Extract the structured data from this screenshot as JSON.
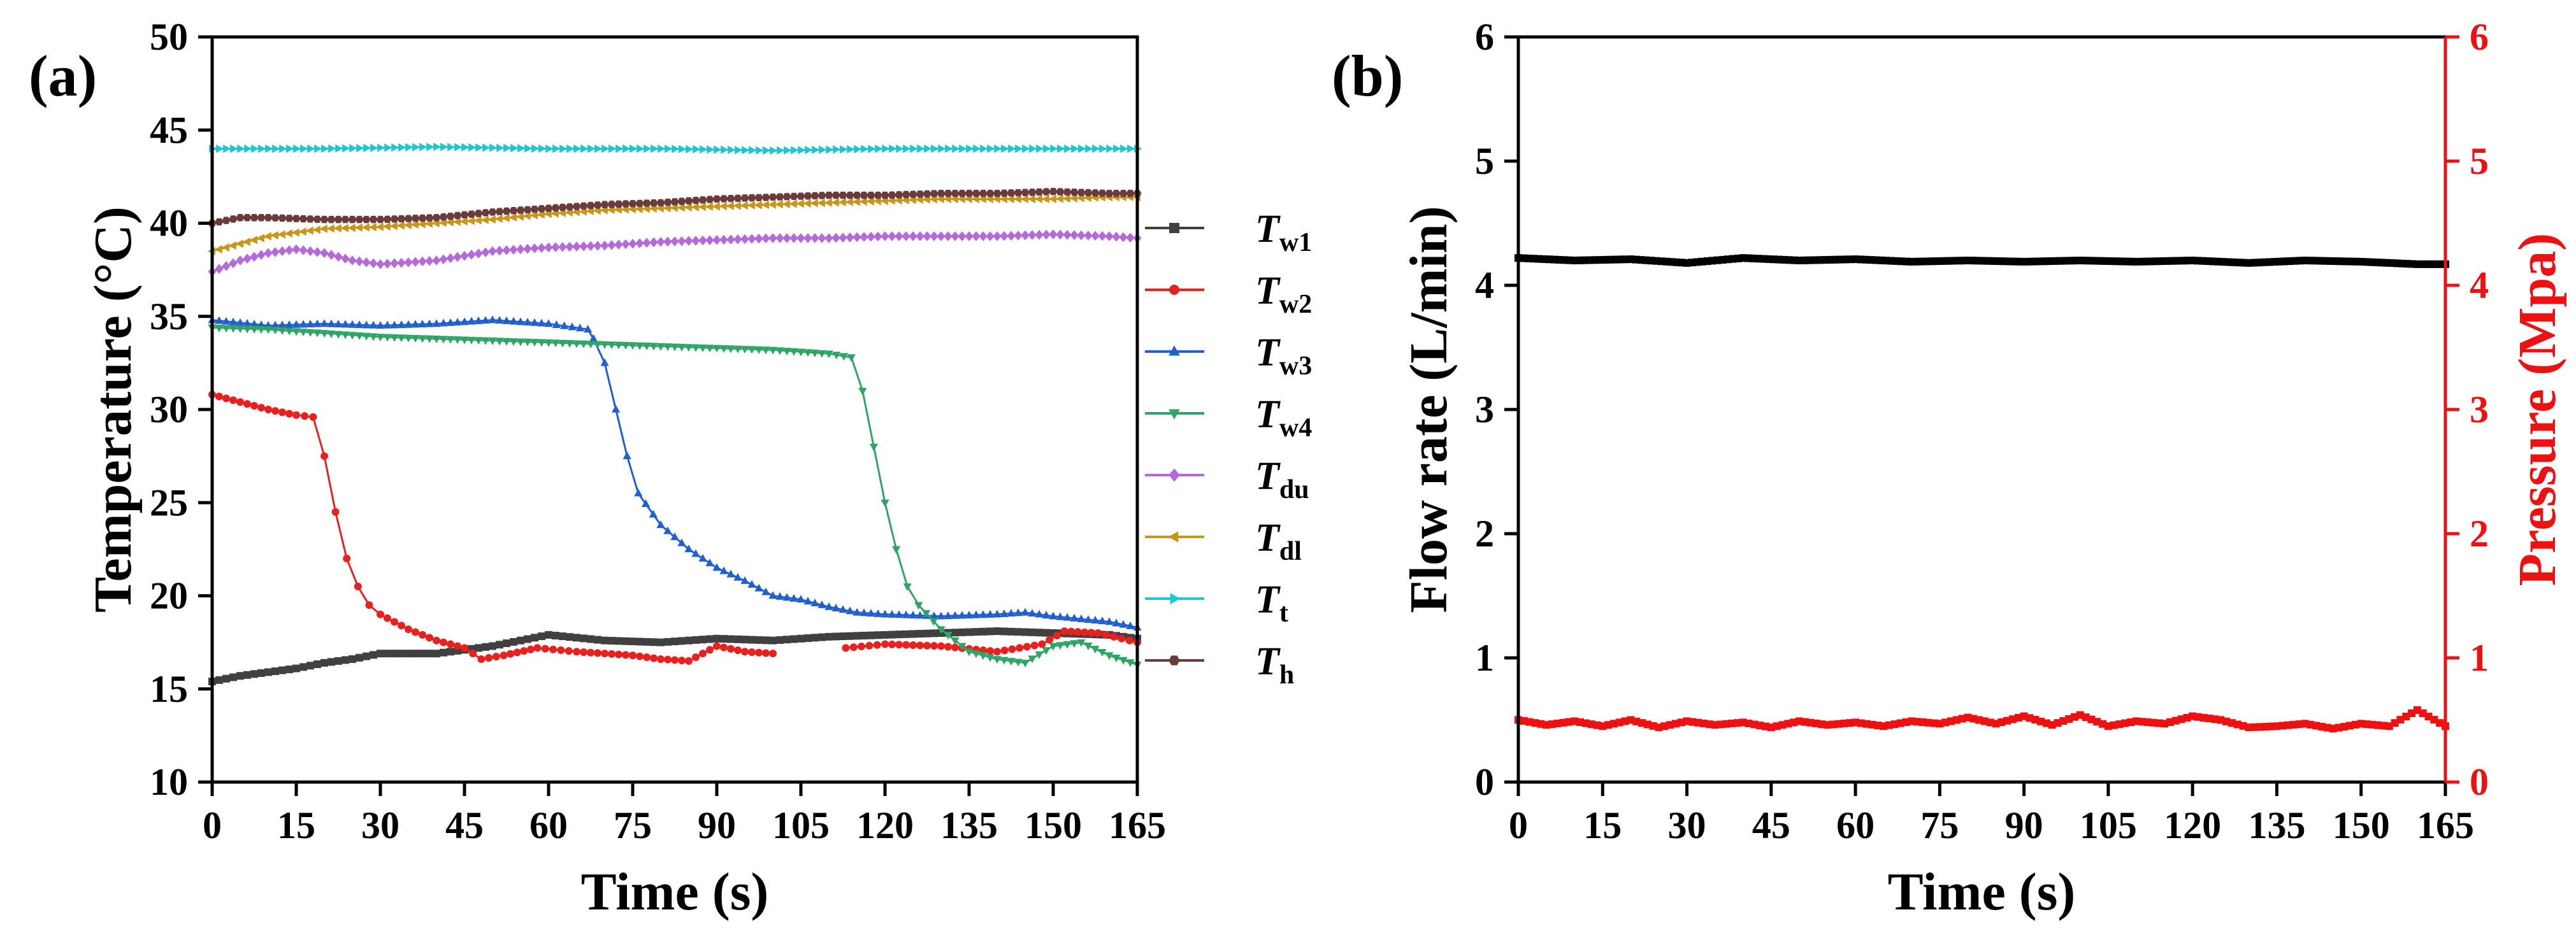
{
  "chart_data": [
    {
      "type": "line",
      "panel_label": "(a)",
      "xlabel": "Time (s)",
      "ylabel": "Temperature (°C)",
      "xlim": [
        0,
        165
      ],
      "ylim": [
        10,
        50
      ],
      "xticks": [
        "0",
        "15",
        "30",
        "45",
        "60",
        "75",
        "90",
        "105",
        "120",
        "135",
        "150",
        "165"
      ],
      "yticks": [
        "10",
        "15",
        "20",
        "25",
        "30",
        "35",
        "40",
        "45",
        "50"
      ],
      "legend_position": "right",
      "series": [
        {
          "name": "T_w1",
          "label_main": "T",
          "label_sub": "w1",
          "color": "#404040",
          "marker": "square",
          "points": [
            [
              0,
              15.4
            ],
            [
              5,
              15.7
            ],
            [
              10,
              15.9
            ],
            [
              15,
              16.1
            ],
            [
              20,
              16.4
            ],
            [
              25,
              16.6
            ],
            [
              30,
              16.9
            ],
            [
              40,
              16.9
            ],
            [
              50,
              17.3
            ],
            [
              60,
              17.9
            ],
            [
              70,
              17.6
            ],
            [
              80,
              17.5
            ],
            [
              90,
              17.7
            ],
            [
              100,
              17.6
            ],
            [
              110,
              17.8
            ],
            [
              120,
              17.9
            ],
            [
              130,
              18.0
            ],
            [
              140,
              18.1
            ],
            [
              150,
              18.0
            ],
            [
              160,
              17.9
            ],
            [
              165,
              17.7
            ]
          ]
        },
        {
          "name": "T_w2",
          "label_main": "T",
          "label_sub": "w2",
          "color": "#e8211f",
          "marker": "circle",
          "points": [
            [
              0,
              30.8
            ],
            [
              5,
              30.4
            ],
            [
              10,
              30.0
            ],
            [
              15,
              29.7
            ],
            [
              18,
              29.6
            ],
            [
              20,
              27.5
            ],
            [
              22,
              24.5
            ],
            [
              24,
              22.0
            ],
            [
              26,
              20.5
            ],
            [
              28,
              19.5
            ],
            [
              30,
              19.0
            ],
            [
              35,
              18.2
            ],
            [
              40,
              17.6
            ],
            [
              45,
              17.2
            ],
            [
              48,
              16.6
            ],
            [
              52,
              16.8
            ],
            [
              58,
              17.2
            ],
            [
              65,
              17.0
            ],
            [
              75,
              16.8
            ],
            [
              80,
              16.6
            ],
            [
              85,
              16.5
            ],
            [
              90,
              17.3
            ],
            [
              95,
              17.0
            ],
            [
              100,
              16.9
            ],
            [
              null,
              null
            ],
            [
              113,
              17.2
            ],
            [
              120,
              17.4
            ],
            [
              130,
              17.3
            ],
            [
              140,
              17.0
            ],
            [
              148,
              17.4
            ],
            [
              152,
              18.1
            ],
            [
              158,
              18.0
            ],
            [
              165,
              17.5
            ]
          ]
        },
        {
          "name": "T_w3",
          "label_main": "T",
          "label_sub": "w3",
          "color": "#1f5fcf",
          "marker": "triangle-up",
          "points": [
            [
              0,
              34.8
            ],
            [
              10,
              34.5
            ],
            [
              20,
              34.6
            ],
            [
              30,
              34.5
            ],
            [
              40,
              34.6
            ],
            [
              50,
              34.8
            ],
            [
              60,
              34.6
            ],
            [
              67,
              34.3
            ],
            [
              68,
              33.8
            ],
            [
              70,
              32.5
            ],
            [
              72,
              30.0
            ],
            [
              74,
              27.5
            ],
            [
              76,
              25.5
            ],
            [
              80,
              23.8
            ],
            [
              85,
              22.5
            ],
            [
              90,
              21.5
            ],
            [
              95,
              20.8
            ],
            [
              100,
              20.0
            ],
            [
              105,
              19.8
            ],
            [
              110,
              19.4
            ],
            [
              115,
              19.1
            ],
            [
              120,
              19.0
            ],
            [
              130,
              18.9
            ],
            [
              140,
              19.0
            ],
            [
              145,
              19.1
            ],
            [
              150,
              18.9
            ],
            [
              160,
              18.6
            ],
            [
              165,
              18.3
            ]
          ]
        },
        {
          "name": "T_w4",
          "label_main": "T",
          "label_sub": "w4",
          "color": "#2fa565",
          "marker": "triangle-down",
          "points": [
            [
              0,
              34.4
            ],
            [
              10,
              34.3
            ],
            [
              20,
              34.1
            ],
            [
              30,
              33.9
            ],
            [
              40,
              33.8
            ],
            [
              50,
              33.7
            ],
            [
              60,
              33.6
            ],
            [
              70,
              33.5
            ],
            [
              80,
              33.4
            ],
            [
              90,
              33.3
            ],
            [
              100,
              33.2
            ],
            [
              110,
              33.0
            ],
            [
              114,
              32.8
            ],
            [
              116,
              31.0
            ],
            [
              118,
              28.0
            ],
            [
              120,
              25.0
            ],
            [
              122,
              22.5
            ],
            [
              124,
              20.5
            ],
            [
              126,
              19.5
            ],
            [
              130,
              18.2
            ],
            [
              135,
              17.0
            ],
            [
              140,
              16.6
            ],
            [
              145,
              16.4
            ],
            [
              150,
              17.3
            ],
            [
              155,
              17.5
            ],
            [
              160,
              16.8
            ],
            [
              165,
              16.3
            ]
          ]
        },
        {
          "name": "T_du",
          "label_main": "T",
          "label_sub": "du",
          "color": "#b46bd9",
          "marker": "diamond",
          "points": [
            [
              0,
              37.4
            ],
            [
              5,
              38.0
            ],
            [
              10,
              38.4
            ],
            [
              15,
              38.6
            ],
            [
              20,
              38.4
            ],
            [
              25,
              38.0
            ],
            [
              30,
              37.8
            ],
            [
              40,
              38.0
            ],
            [
              50,
              38.5
            ],
            [
              60,
              38.7
            ],
            [
              70,
              38.8
            ],
            [
              80,
              39.0
            ],
            [
              90,
              39.1
            ],
            [
              100,
              39.2
            ],
            [
              110,
              39.2
            ],
            [
              120,
              39.3
            ],
            [
              130,
              39.3
            ],
            [
              140,
              39.3
            ],
            [
              150,
              39.4
            ],
            [
              160,
              39.3
            ],
            [
              165,
              39.2
            ]
          ]
        },
        {
          "name": "T_dl",
          "label_main": "T",
          "label_sub": "dl",
          "color": "#c8961a",
          "marker": "triangle-left",
          "points": [
            [
              0,
              38.5
            ],
            [
              5,
              38.9
            ],
            [
              10,
              39.3
            ],
            [
              15,
              39.5
            ],
            [
              20,
              39.7
            ],
            [
              30,
              39.8
            ],
            [
              40,
              40.0
            ],
            [
              50,
              40.2
            ],
            [
              60,
              40.5
            ],
            [
              70,
              40.7
            ],
            [
              80,
              40.8
            ],
            [
              90,
              40.9
            ],
            [
              100,
              41.0
            ],
            [
              110,
              41.1
            ],
            [
              120,
              41.2
            ],
            [
              130,
              41.3
            ],
            [
              140,
              41.3
            ],
            [
              150,
              41.3
            ],
            [
              160,
              41.4
            ],
            [
              165,
              41.4
            ]
          ]
        },
        {
          "name": "T_t",
          "label_main": "T",
          "label_sub": "t",
          "color": "#1fc6cf",
          "marker": "triangle-right",
          "points": [
            [
              0,
              44.0
            ],
            [
              20,
              44.0
            ],
            [
              40,
              44.1
            ],
            [
              60,
              44.0
            ],
            [
              80,
              44.0
            ],
            [
              100,
              43.9
            ],
            [
              120,
              44.0
            ],
            [
              140,
              44.0
            ],
            [
              165,
              44.0
            ]
          ]
        },
        {
          "name": "T_h",
          "label_main": "T",
          "label_sub": "h",
          "color": "#6b3a3a",
          "marker": "hexagon",
          "points": [
            [
              0,
              40.0
            ],
            [
              5,
              40.3
            ],
            [
              10,
              40.3
            ],
            [
              20,
              40.2
            ],
            [
              30,
              40.2
            ],
            [
              40,
              40.3
            ],
            [
              50,
              40.6
            ],
            [
              60,
              40.8
            ],
            [
              70,
              41.0
            ],
            [
              80,
              41.1
            ],
            [
              90,
              41.3
            ],
            [
              100,
              41.4
            ],
            [
              110,
              41.5
            ],
            [
              120,
              41.5
            ],
            [
              130,
              41.6
            ],
            [
              140,
              41.6
            ],
            [
              150,
              41.7
            ],
            [
              160,
              41.6
            ],
            [
              165,
              41.6
            ]
          ]
        }
      ]
    },
    {
      "type": "line",
      "panel_label": "(b)",
      "xlabel": "Time (s)",
      "ylabel": "Flow rate (L/min)",
      "y2label": "Pressure (Mpa)",
      "xlim": [
        0,
        165
      ],
      "ylim": [
        0,
        6
      ],
      "y2lim": [
        0,
        6
      ],
      "xticks": [
        "0",
        "15",
        "30",
        "45",
        "60",
        "75",
        "90",
        "105",
        "120",
        "135",
        "150",
        "165"
      ],
      "yticks": [
        "0",
        "1",
        "2",
        "3",
        "4",
        "5",
        "6"
      ],
      "y2ticks": [
        "0",
        "1",
        "2",
        "3",
        "4",
        "5",
        "6"
      ],
      "axis_color_right": "#ee1111",
      "series": [
        {
          "name": "Flow rate",
          "axis": "left",
          "color": "#000000",
          "marker": "square",
          "points": [
            [
              0,
              4.22
            ],
            [
              10,
              4.2
            ],
            [
              20,
              4.21
            ],
            [
              30,
              4.18
            ],
            [
              40,
              4.22
            ],
            [
              50,
              4.2
            ],
            [
              60,
              4.21
            ],
            [
              70,
              4.19
            ],
            [
              80,
              4.2
            ],
            [
              90,
              4.19
            ],
            [
              100,
              4.2
            ],
            [
              110,
              4.19
            ],
            [
              120,
              4.2
            ],
            [
              130,
              4.18
            ],
            [
              140,
              4.2
            ],
            [
              150,
              4.19
            ],
            [
              160,
              4.17
            ],
            [
              165,
              4.17
            ]
          ]
        },
        {
          "name": "Pressure",
          "axis": "right",
          "color": "#ee1111",
          "marker": "square",
          "points": [
            [
              0,
              0.5
            ],
            [
              5,
              0.46
            ],
            [
              10,
              0.49
            ],
            [
              15,
              0.45
            ],
            [
              20,
              0.5
            ],
            [
              25,
              0.44
            ],
            [
              30,
              0.49
            ],
            [
              35,
              0.46
            ],
            [
              40,
              0.48
            ],
            [
              45,
              0.44
            ],
            [
              50,
              0.49
            ],
            [
              55,
              0.46
            ],
            [
              60,
              0.48
            ],
            [
              65,
              0.45
            ],
            [
              70,
              0.49
            ],
            [
              75,
              0.47
            ],
            [
              80,
              0.52
            ],
            [
              85,
              0.47
            ],
            [
              90,
              0.53
            ],
            [
              95,
              0.46
            ],
            [
              100,
              0.54
            ],
            [
              105,
              0.45
            ],
            [
              110,
              0.49
            ],
            [
              115,
              0.47
            ],
            [
              120,
              0.53
            ],
            [
              125,
              0.5
            ],
            [
              130,
              0.44
            ],
            [
              135,
              0.45
            ],
            [
              140,
              0.47
            ],
            [
              145,
              0.43
            ],
            [
              150,
              0.47
            ],
            [
              155,
              0.45
            ],
            [
              160,
              0.58
            ],
            [
              165,
              0.45
            ]
          ]
        }
      ]
    }
  ]
}
